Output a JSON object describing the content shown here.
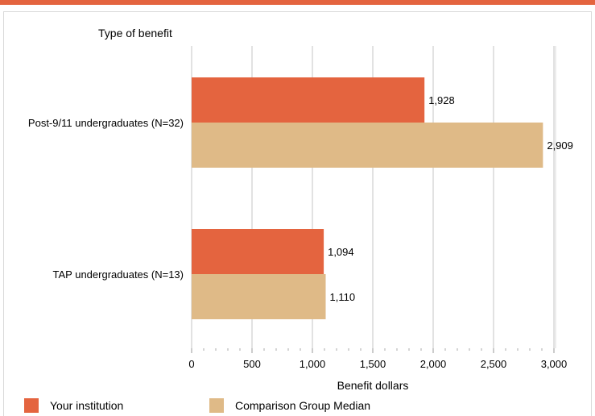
{
  "colors": {
    "accent": "#e4643f",
    "your_institution": "#e4643f",
    "comparison": "#dfba87",
    "grid": "#d9d9d9"
  },
  "chart_data": {
    "type": "bar",
    "orientation": "horizontal",
    "title": "",
    "ylabel": "Type of benefit",
    "xlabel": "Benefit dollars",
    "categories": [
      "Post-9/11 undergraduates (N=32)",
      "TAP undergraduates (N=13)"
    ],
    "series": [
      {
        "name": "Your institution",
        "values": [
          1928,
          1094
        ],
        "labels": [
          "1,928",
          "1,094"
        ]
      },
      {
        "name": "Comparison Group Median",
        "values": [
          2909,
          1110
        ],
        "labels": [
          "2,909",
          "1,110"
        ]
      }
    ],
    "xlim": [
      0,
      3000
    ],
    "ticks": [
      0,
      500,
      1000,
      1500,
      2000,
      2500,
      3000
    ],
    "tick_labels": [
      "0",
      "500",
      "1,000",
      "1,500",
      "2,000",
      "2,500",
      "3,000"
    ],
    "grid": true,
    "legend_position": "bottom"
  }
}
